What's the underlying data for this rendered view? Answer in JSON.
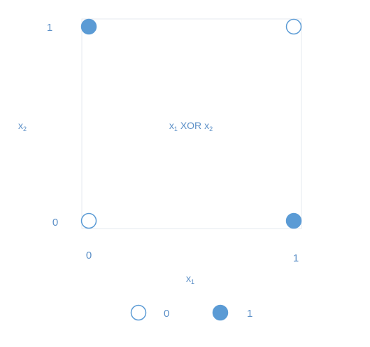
{
  "chart_data": {
    "type": "scatter",
    "title": "x1 XOR x2",
    "title_parts": {
      "a": "x",
      "a_sub": "1",
      "op": " XOR ",
      "b": "x",
      "b_sub": "2"
    },
    "xlabel": "x1",
    "xlabel_parts": {
      "base": "x",
      "sub": "1"
    },
    "ylabel": "x2",
    "ylabel_parts": {
      "base": "x",
      "sub": "2"
    },
    "x_ticks": [
      "0",
      "1"
    ],
    "y_ticks": [
      "0",
      "1"
    ],
    "xlim": [
      0,
      1
    ],
    "ylim": [
      0,
      1
    ],
    "grid": false,
    "legend_position": "bottom",
    "legend": [
      {
        "label": "0",
        "filled": false
      },
      {
        "label": "1",
        "filled": true
      }
    ],
    "points": [
      {
        "x": 0,
        "y": 0,
        "value": 0
      },
      {
        "x": 0,
        "y": 1,
        "value": 1
      },
      {
        "x": 1,
        "y": 0,
        "value": 1
      },
      {
        "x": 1,
        "y": 1,
        "value": 0
      }
    ],
    "colors": {
      "accent": "#5b9bd5",
      "text": "#5b8fc7",
      "frame": "#e4e8ef",
      "background": "#ffffff"
    }
  }
}
